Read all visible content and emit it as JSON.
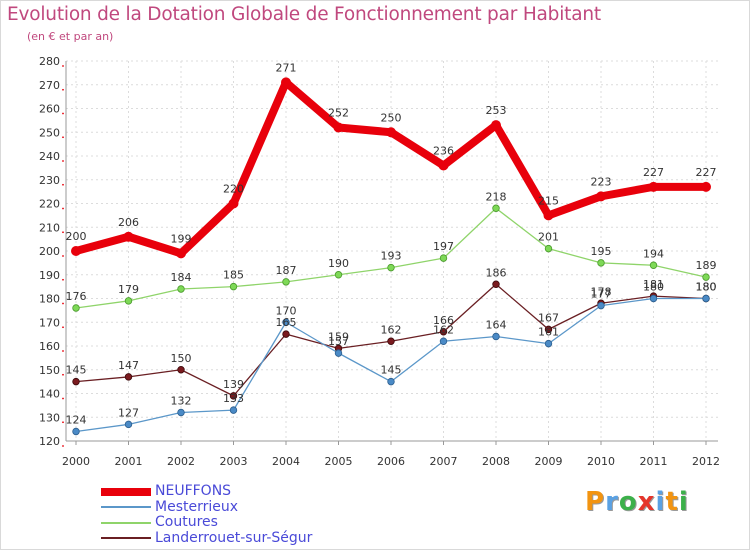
{
  "title": "Evolution de la Dotation Globale de Fonctionnement par Habitant",
  "subtitle": "(en € et par an)",
  "brand": {
    "letters": [
      "P",
      "r",
      "o",
      "x",
      "i",
      "t",
      "i"
    ],
    "colors": [
      "#f29411",
      "#5aa1e3",
      "#3cb04a",
      "#e5352b",
      "#5aa1e3",
      "#f29411",
      "#3cb04a"
    ]
  },
  "chart_data": {
    "type": "line",
    "title": "Evolution de la Dotation Globale de Fonctionnement par Habitant",
    "subtitle": "(en € et par an)",
    "xlabel": "",
    "ylabel": "",
    "categories": [
      "2000",
      "2001",
      "2002",
      "2003",
      "2004",
      "2005",
      "2006",
      "2007",
      "2008",
      "2009",
      "2010",
      "2011",
      "2012"
    ],
    "ylim": [
      120,
      280
    ],
    "yticks": [
      120,
      130,
      140,
      150,
      160,
      170,
      180,
      190,
      200,
      210,
      220,
      230,
      240,
      250,
      260,
      270,
      280
    ],
    "grid": true,
    "legend_position": "bottom-left",
    "series": [
      {
        "name": "NEUFFONS",
        "color": "#e8000b",
        "values": [
          200,
          206,
          199,
          220,
          271,
          252,
          250,
          236,
          253,
          215,
          223,
          227,
          227
        ]
      },
      {
        "name": "Mesterrieux",
        "color": "#5b97c9",
        "values": [
          124,
          127,
          132,
          133,
          170,
          157,
          145,
          162,
          164,
          161,
          177,
          180,
          180
        ]
      },
      {
        "name": "Coutures",
        "color": "#8fd46a",
        "values": [
          176,
          179,
          184,
          185,
          187,
          190,
          193,
          197,
          218,
          201,
          195,
          194,
          189
        ]
      },
      {
        "name": "Landerrouet-sur-Ségur",
        "color": "#6a1f23",
        "values": [
          145,
          147,
          150,
          139,
          165,
          159,
          162,
          166,
          186,
          167,
          178,
          181,
          180
        ]
      }
    ]
  }
}
